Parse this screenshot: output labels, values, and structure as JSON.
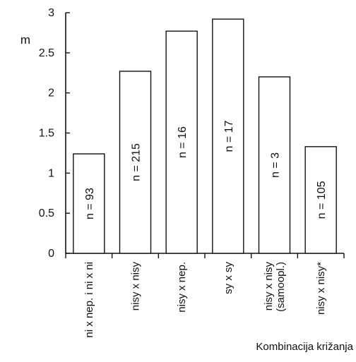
{
  "chart_data": {
    "type": "bar",
    "title": "",
    "ylabel": "m",
    "xlabel": "Kombinacija križanja",
    "ylim": [
      0,
      3
    ],
    "yticks": [
      "0",
      "0.5",
      "1",
      "1.5",
      "2",
      "2.5",
      "3"
    ],
    "grid": false,
    "categories": [
      [
        "ni x nep. i ni x ni"
      ],
      [
        "nisy x nisy"
      ],
      [
        "nisy x nep."
      ],
      [
        "sy x sy"
      ],
      [
        "nisy x nisy",
        "(samoopl.)"
      ],
      [
        "nisy x nisy*"
      ]
    ],
    "values": [
      1.24,
      2.27,
      2.77,
      2.92,
      2.2,
      1.33
    ],
    "bar_labels": [
      "n = 93",
      "n = 215",
      "n = 16",
      "n = 17",
      "n = 3",
      "n = 105"
    ],
    "colors": {
      "bar_fill": "#ffffff",
      "bar_stroke": "#111111",
      "axis": "#111111"
    }
  }
}
